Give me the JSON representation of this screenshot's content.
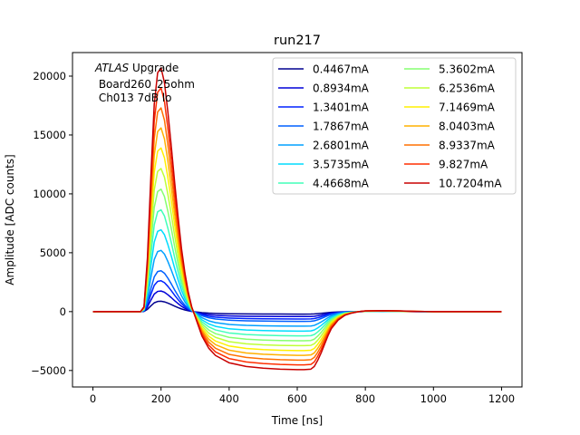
{
  "chart_data": {
    "type": "line",
    "title": "run217",
    "xlabel": "Time [ns]",
    "ylabel": "Amplitude [ADC counts]",
    "xlim": [
      -60,
      1260
    ],
    "ylim": [
      -6400,
      22000
    ],
    "xticks": [
      0,
      200,
      400,
      600,
      800,
      1000,
      1200
    ],
    "yticks": [
      -5000,
      0,
      5000,
      10000,
      15000,
      20000
    ],
    "xtick_labels": [
      "0",
      "200",
      "400",
      "600",
      "800",
      "1000",
      "1200"
    ],
    "ytick_labels": [
      "−5000",
      "0",
      "5000",
      "10000",
      "15000",
      "20000"
    ],
    "annotation": {
      "line1_italic": "ATLAS",
      "line1_rest": " Upgrade",
      "line2": " Board260_25ohm",
      "line3": " Ch013 7dB lo"
    },
    "legend_position": "upper-right",
    "pulse_shape_points": {
      "t": [
        0,
        140,
        150,
        160,
        170,
        180,
        190,
        200,
        210,
        220,
        230,
        240,
        250,
        260,
        270,
        280,
        290,
        300,
        310,
        320,
        340,
        360,
        400,
        450,
        500,
        550,
        600,
        620,
        640,
        650,
        660,
        670,
        680,
        690,
        700,
        720,
        740,
        760,
        780,
        800,
        850,
        900,
        950,
        1000,
        1100,
        1200
      ],
      "normalized_amplitude": [
        0,
        0,
        0.02,
        0.22,
        0.55,
        0.85,
        0.98,
        1.0,
        0.94,
        0.82,
        0.68,
        0.53,
        0.39,
        0.26,
        0.16,
        0.08,
        0.02,
        -0.02,
        -0.06,
        -0.1,
        -0.15,
        -0.18,
        -0.21,
        -0.225,
        -0.232,
        -0.236,
        -0.238,
        -0.238,
        -0.236,
        -0.225,
        -0.2,
        -0.17,
        -0.135,
        -0.1,
        -0.07,
        -0.035,
        -0.015,
        -0.006,
        0.0,
        0.003,
        0.004,
        0.003,
        0.001,
        0.0,
        0.0,
        0.0
      ]
    },
    "series": [
      {
        "name": "0.4467mA",
        "peak": 880,
        "color": "#00008f"
      },
      {
        "name": "0.8934mA",
        "peak": 1750,
        "color": "#0000d8"
      },
      {
        "name": "1.3401mA",
        "peak": 2620,
        "color": "#0022ff"
      },
      {
        "name": "1.7867mA",
        "peak": 3470,
        "color": "#0060ff"
      },
      {
        "name": "2.6801mA",
        "peak": 5200,
        "color": "#00a0ff"
      },
      {
        "name": "3.5735mA",
        "peak": 6950,
        "color": "#00dcfe"
      },
      {
        "name": "4.4668mA",
        "peak": 8650,
        "color": "#40ffb8"
      },
      {
        "name": "5.3602mA",
        "peak": 10400,
        "color": "#86ff70"
      },
      {
        "name": "6.2536mA",
        "peak": 12150,
        "color": "#bfff36"
      },
      {
        "name": "7.1469mA",
        "peak": 13900,
        "color": "#fff000"
      },
      {
        "name": "8.0403mA",
        "peak": 15600,
        "color": "#ffb000"
      },
      {
        "name": "8.9337mA",
        "peak": 17300,
        "color": "#ff7000"
      },
      {
        "name": "9.827mA",
        "peak": 19000,
        "color": "#ff2e00"
      },
      {
        "name": "10.7204mA",
        "peak": 20700,
        "color": "#c80000"
      }
    ]
  }
}
